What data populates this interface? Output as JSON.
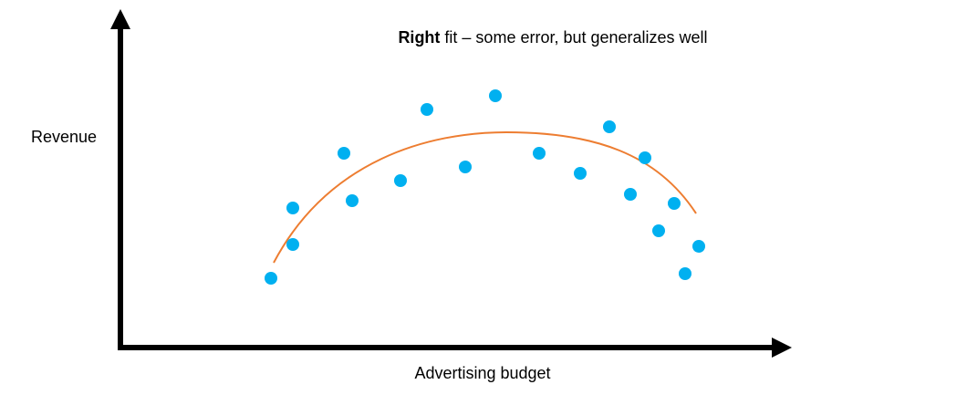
{
  "title": {
    "bold": "Right",
    "rest": " fit – some error, but generalizes well"
  },
  "axes": {
    "y_label": "Revenue",
    "x_label": "Advertising budget"
  }
}
